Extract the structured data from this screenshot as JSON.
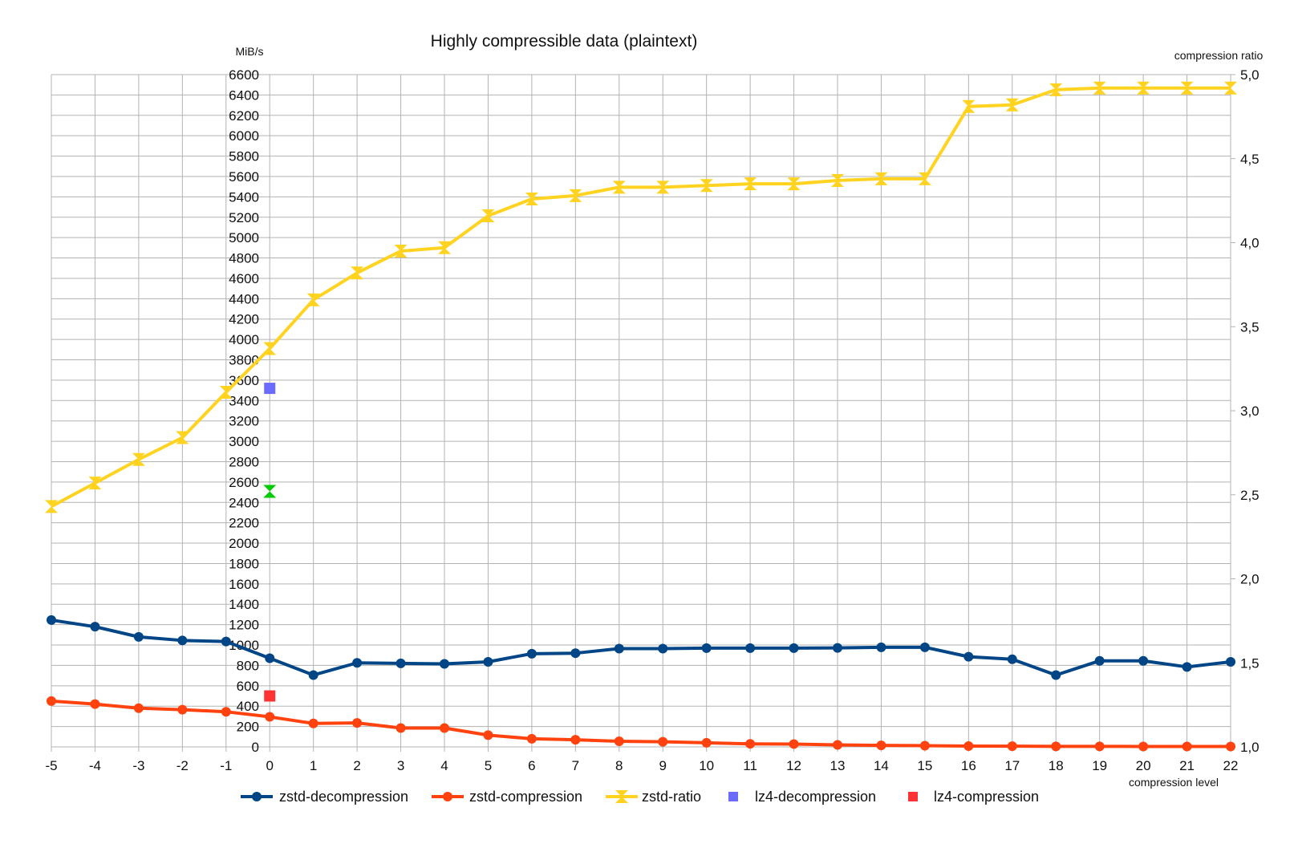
{
  "chart_data": {
    "type": "line",
    "title": "Highly compressible data (plaintext)",
    "xlabel": "compression level",
    "ylabel": "MiB/s",
    "y2label": "compression ratio",
    "x": [
      -5,
      -4,
      -3,
      -2,
      -1,
      0,
      1,
      2,
      3,
      4,
      5,
      6,
      7,
      8,
      9,
      10,
      11,
      12,
      13,
      14,
      15,
      16,
      17,
      18,
      19,
      20,
      21,
      22
    ],
    "xlim": [
      -5,
      22
    ],
    "ylim": [
      0,
      6600
    ],
    "y2lim": [
      1.0,
      5.0
    ],
    "y_ticks": [
      "0",
      "200",
      "400",
      "600",
      "800",
      "1000",
      "1200",
      "1400",
      "1600",
      "1800",
      "2000",
      "2200",
      "2400",
      "2600",
      "2800",
      "3000",
      "3200",
      "3400",
      "3600",
      "3800",
      "4000",
      "4200",
      "4400",
      "4600",
      "4800",
      "5000",
      "5200",
      "5400",
      "5600",
      "5800",
      "6000",
      "6200",
      "6400",
      "6600"
    ],
    "y2_ticks": [
      "1,0",
      "1,5",
      "2,0",
      "2,5",
      "3,0",
      "3,5",
      "4,0",
      "4,5",
      "5,0"
    ],
    "grid": true,
    "legend_position": "bottom",
    "series": [
      {
        "name": "zstd-decompression",
        "axis": "left",
        "color": "#004586",
        "marker": "circle",
        "values": [
          1245,
          1180,
          1080,
          1045,
          1035,
          870,
          705,
          825,
          820,
          815,
          835,
          915,
          920,
          965,
          965,
          970,
          970,
          970,
          972,
          978,
          978,
          885,
          860,
          705,
          845,
          845,
          785,
          835
        ]
      },
      {
        "name": "zstd-compression",
        "axis": "left",
        "color": "#ff420e",
        "marker": "circle",
        "values": [
          450,
          420,
          380,
          365,
          345,
          295,
          230,
          235,
          185,
          185,
          115,
          80,
          70,
          55,
          50,
          40,
          30,
          28,
          20,
          15,
          12,
          8,
          7,
          5,
          5,
          4,
          4,
          4
        ]
      },
      {
        "name": "zstd-ratio",
        "axis": "right",
        "color": "#ffd320",
        "marker": "hourglass",
        "values": [
          2.43,
          2.57,
          2.71,
          2.84,
          3.11,
          3.37,
          3.66,
          3.82,
          3.95,
          3.97,
          4.16,
          4.26,
          4.28,
          4.33,
          4.33,
          4.34,
          4.35,
          4.35,
          4.37,
          4.38,
          4.38,
          4.81,
          4.82,
          4.91,
          4.92,
          4.92,
          4.92,
          4.92
        ]
      },
      {
        "name": "lz4-decompression",
        "axis": "left",
        "color": "#6b6bff",
        "marker": "square",
        "x": [
          0
        ],
        "values": [
          3520
        ]
      },
      {
        "name": "lz4-compression",
        "axis": "left",
        "color": "#ff3333",
        "marker": "square",
        "x": [
          0
        ],
        "values": [
          500
        ]
      }
    ],
    "extra_points": [
      {
        "axis": "right",
        "color": "#00cc00",
        "marker": "hourglass",
        "x": 0,
        "value": 2.52
      }
    ]
  }
}
